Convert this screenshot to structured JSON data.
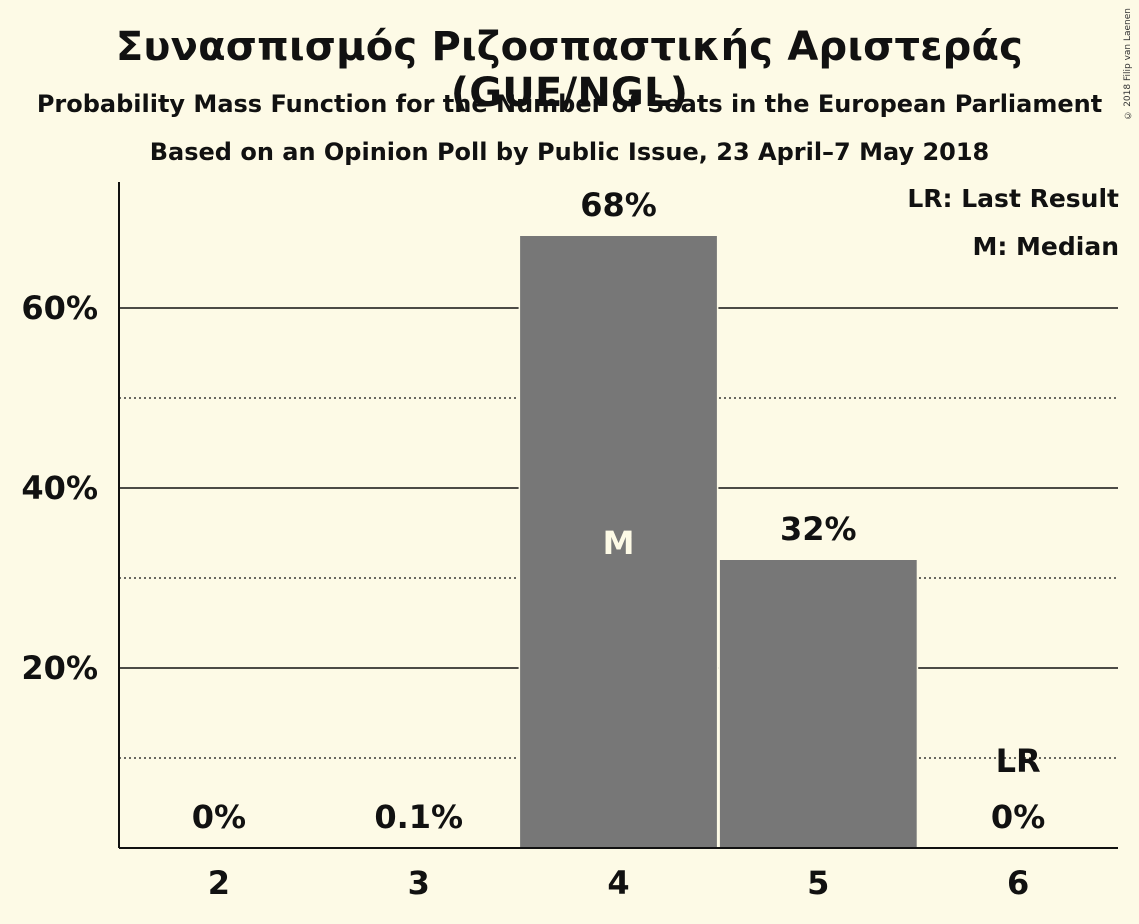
{
  "header": {
    "title": "Συνασπισμός Ριζοσπαστικής Αριστεράς (GUE/NGL)",
    "subtitle": "Probability Mass Function for the Number of Seats in the European Parliament",
    "source": "Based on an Opinion Poll by Public Issue, 23 April–7 May 2018"
  },
  "copyright": "© 2018 Filip van Laenen",
  "legend": {
    "last_result": "LR: Last Result",
    "median": "M: Median"
  },
  "colors": {
    "background": "#fdfae6",
    "bar": "#777777",
    "text": "#111111"
  },
  "chart_data": {
    "type": "bar",
    "categories": [
      "2",
      "3",
      "4",
      "5",
      "6"
    ],
    "values": [
      0,
      0.1,
      68,
      32,
      0
    ],
    "value_labels": [
      "0%",
      "0.1%",
      "68%",
      "32%",
      "0%"
    ],
    "ylim": [
      0,
      74
    ],
    "yticks": [
      20,
      40,
      60
    ],
    "ytick_labels": [
      "20%",
      "40%",
      "60%"
    ],
    "dotted_gridlines": [
      10,
      30,
      50
    ],
    "median_category": "4",
    "median_marker": "M",
    "last_result_category": "6",
    "last_result_marker": "LR",
    "xlabel": "",
    "ylabel": ""
  }
}
